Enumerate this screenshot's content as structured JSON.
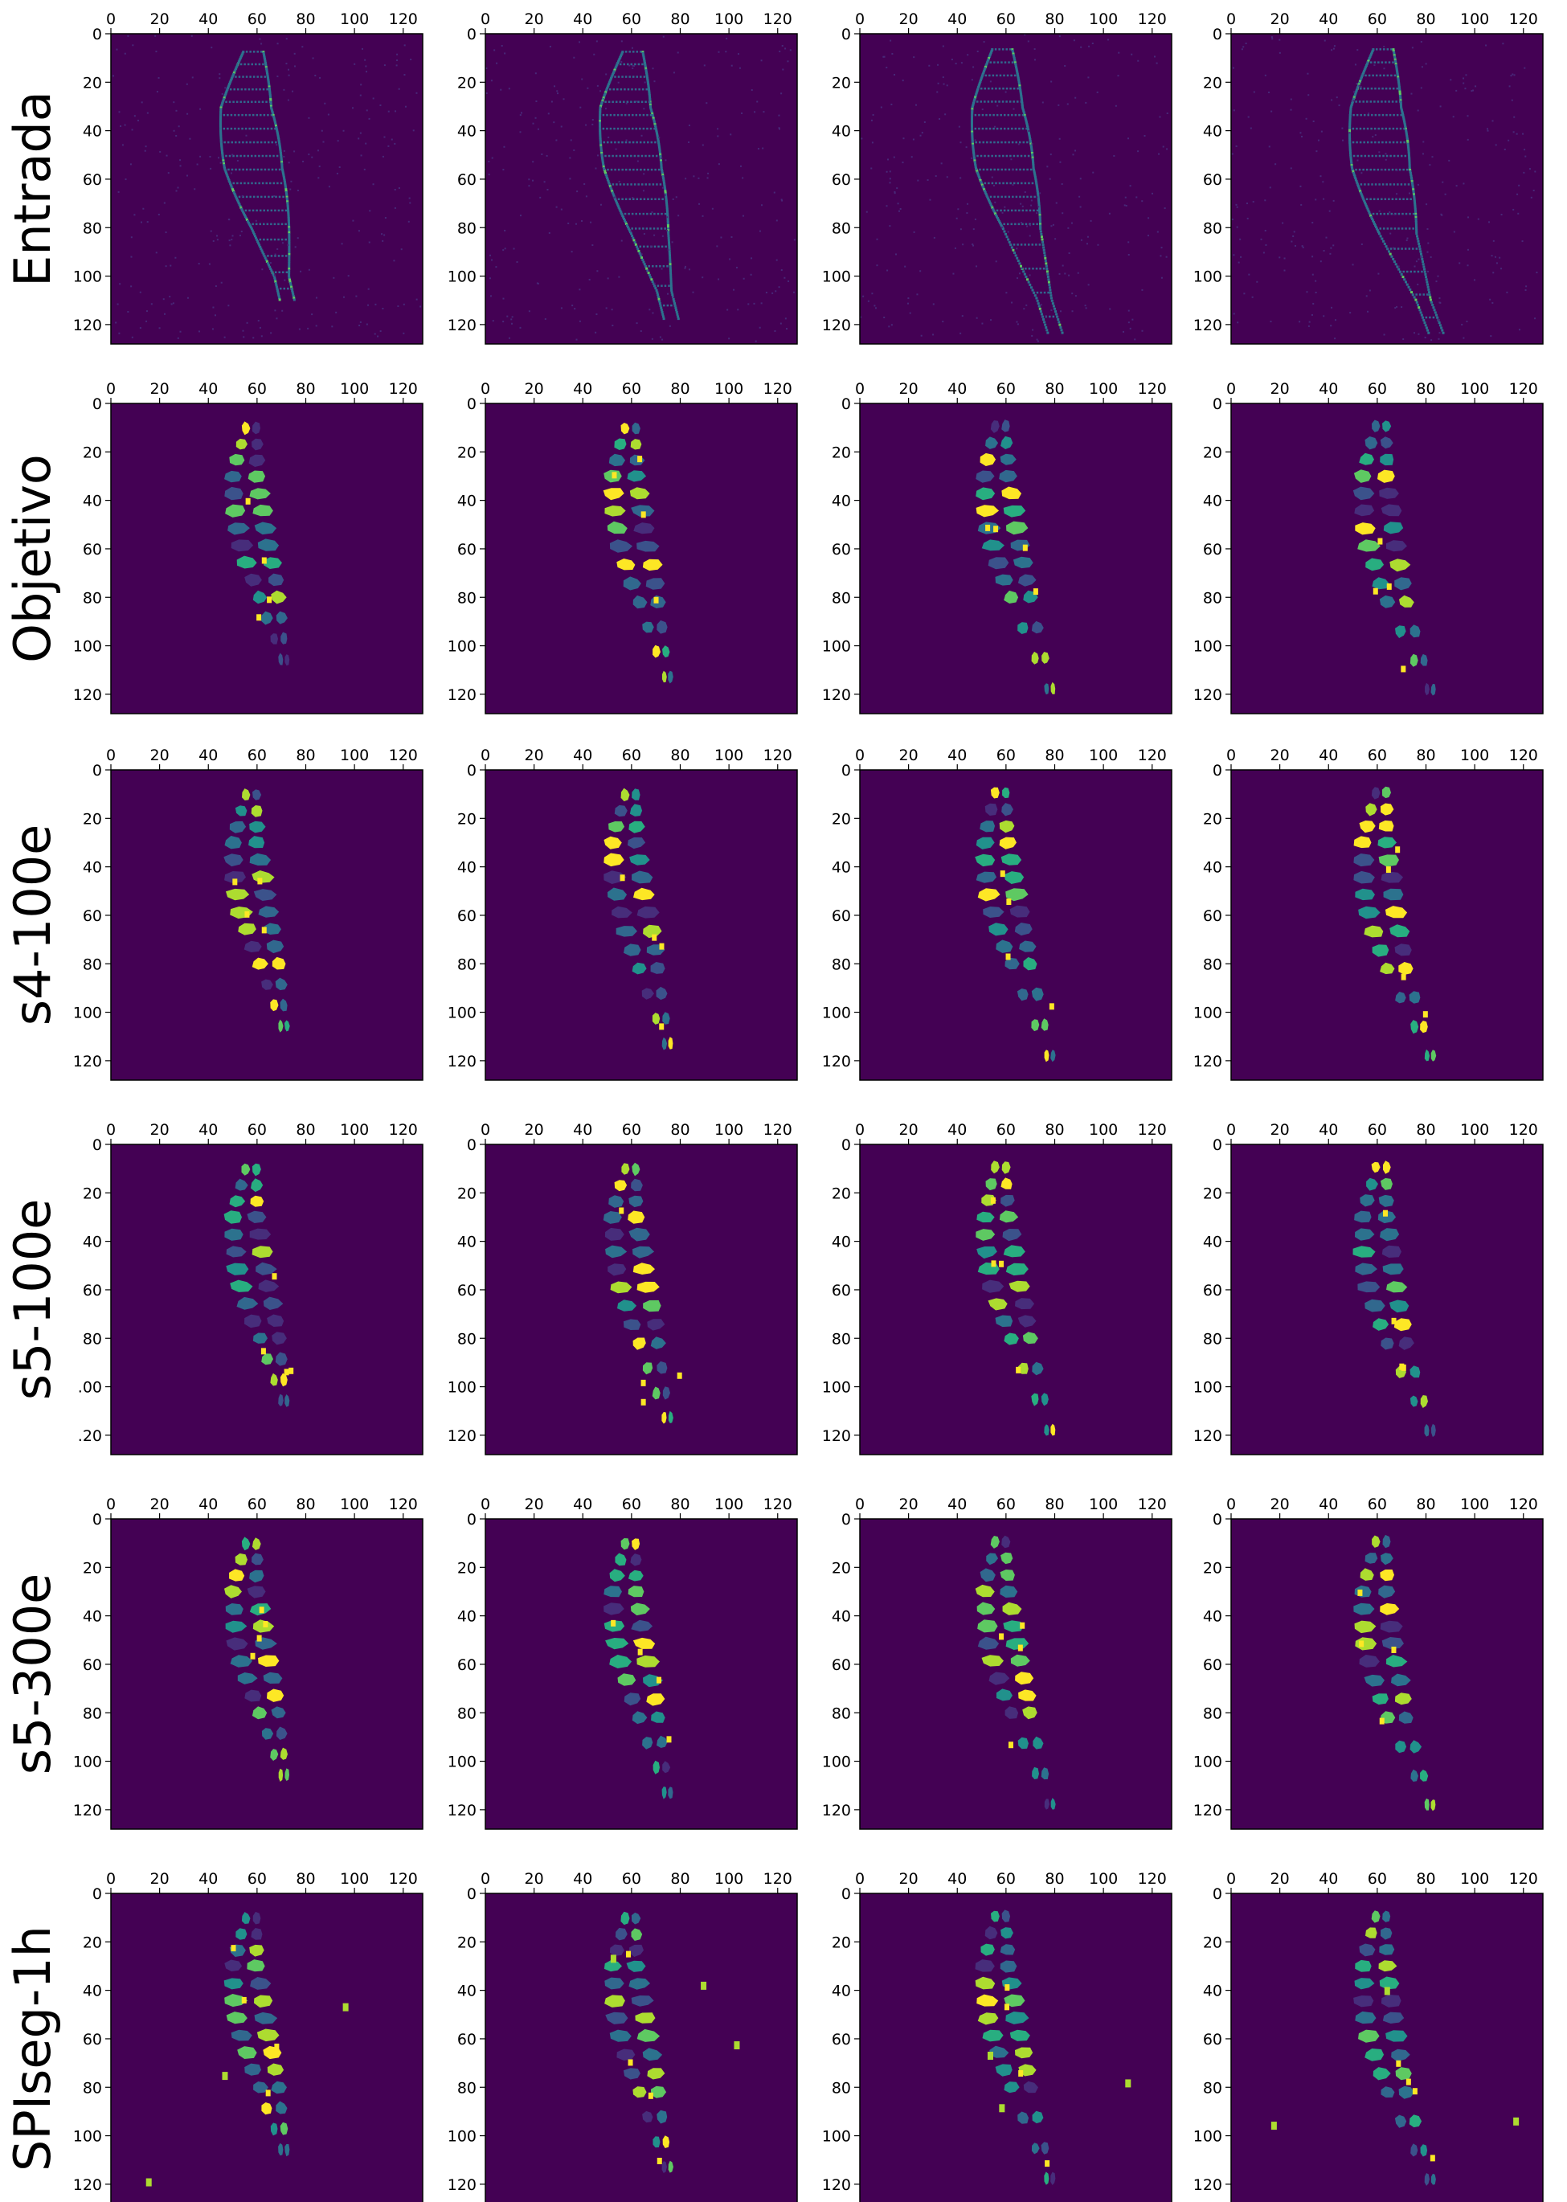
{
  "chart_data": {
    "type": "heatmap",
    "description_kind": "image grid of segmentation masks (viridis colormap)",
    "rows": [
      "Entrada",
      "Objetivo",
      "s4-100e",
      "s5-100e",
      "s5-300e",
      "SPIseg-1h"
    ],
    "columns": 4,
    "xlim": [
      0,
      128
    ],
    "ylim": [
      128,
      0
    ],
    "x_ticks": [
      "0",
      "20",
      "40",
      "60",
      "80",
      "100",
      "120"
    ],
    "y_ticks": [
      "0",
      "20",
      "40",
      "60",
      "80",
      "100",
      "120"
    ],
    "y_tick_overrides": {
      "s5-100e": [
        "0",
        "20",
        "40",
        "60",
        "80",
        ".00",
        ".20"
      ]
    },
    "colormap": {
      "background": "#440154",
      "cell_colors": [
        "#3b528b",
        "#2c728e",
        "#21918c",
        "#28ae80",
        "#5ec962",
        "#addc30",
        "#fde725",
        "#472d7b",
        "#31688e"
      ]
    }
  }
}
